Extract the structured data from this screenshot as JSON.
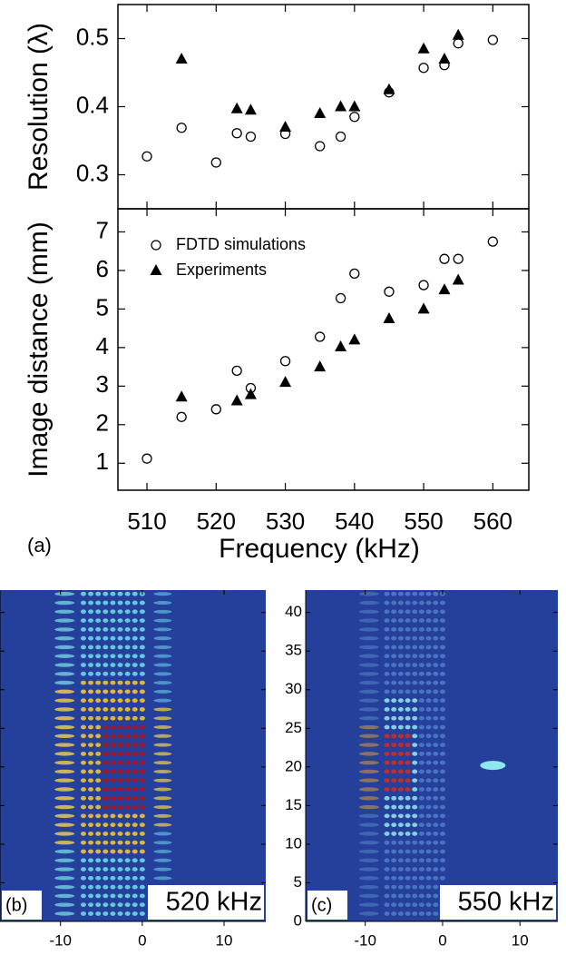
{
  "chart_data": [
    {
      "type": "scatter",
      "ylabel": "Resolution (λ)",
      "xlim": [
        505.8,
        565.2
      ],
      "xticks": [
        510,
        520,
        530,
        540,
        550,
        560
      ],
      "ylim": [
        0.25,
        0.55
      ],
      "yticks": [
        0.3,
        0.4,
        0.5
      ],
      "series": [
        {
          "marker": "circle",
          "color": "#000000",
          "x": [
            510,
            515,
            520,
            523,
            525,
            530,
            535,
            538,
            540,
            545,
            550,
            553,
            555,
            560
          ],
          "values": [
            0.327,
            0.369,
            0.318,
            0.361,
            0.356,
            0.36,
            0.342,
            0.356,
            0.385,
            0.421,
            0.457,
            0.461,
            0.493,
            0.498
          ]
        },
        {
          "marker": "triangle",
          "color": "#000000",
          "x": [
            515,
            523,
            525,
            530,
            535,
            538,
            540,
            545,
            550,
            553,
            555
          ],
          "values": [
            0.47,
            0.397,
            0.395,
            0.37,
            0.39,
            0.4,
            0.4,
            0.425,
            0.485,
            0.47,
            0.505
          ]
        }
      ]
    },
    {
      "type": "scatter",
      "ylabel": "Image distance (mm)",
      "xlabel": "Frequency (kHz)",
      "panel_label": "(a)",
      "xlim": [
        505.8,
        565.2
      ],
      "xticks": [
        510,
        520,
        530,
        540,
        550,
        560
      ],
      "ylim": [
        0.3,
        7.6
      ],
      "yticks": [
        1,
        2,
        3,
        4,
        5,
        6,
        7
      ],
      "legend": "upper left",
      "series": [
        {
          "name": "FDTD simulations",
          "marker": "circle",
          "color": "#000000",
          "x": [
            510,
            515,
            520,
            523,
            525,
            530,
            535,
            538,
            540,
            545,
            550,
            553,
            555,
            560
          ],
          "values": [
            1.12,
            2.2,
            2.4,
            3.4,
            2.95,
            3.65,
            4.28,
            5.28,
            5.92,
            5.45,
            5.62,
            6.3,
            6.3,
            6.75
          ]
        },
        {
          "name": "Experiments",
          "marker": "triangle",
          "color": "#000000",
          "x": [
            515,
            523,
            525,
            530,
            535,
            538,
            540,
            545,
            550,
            553,
            555
          ],
          "values": [
            2.72,
            2.62,
            2.78,
            3.1,
            3.5,
            4.02,
            4.2,
            4.75,
            5.0,
            5.5,
            5.75
          ]
        }
      ]
    },
    {
      "type": "heatmap",
      "panel_label": "(b)",
      "annotation": "520 kHz",
      "xlim": [
        -17.4,
        15.1
      ],
      "xticks": [
        -10,
        0,
        10
      ],
      "ylim": [
        0,
        42.9
      ],
      "yticks": [
        0,
        5,
        10,
        15,
        20,
        25,
        30,
        35,
        40
      ]
    },
    {
      "type": "heatmap",
      "panel_label": "(c)",
      "annotation": "550 kHz",
      "xlim": [
        -17.7,
        14.9
      ],
      "xticks": [
        -10,
        0,
        10
      ],
      "ylim": [
        0,
        42.9
      ],
      "yticks": [
        0,
        5,
        10,
        15,
        20,
        25,
        30,
        35,
        40
      ]
    }
  ]
}
